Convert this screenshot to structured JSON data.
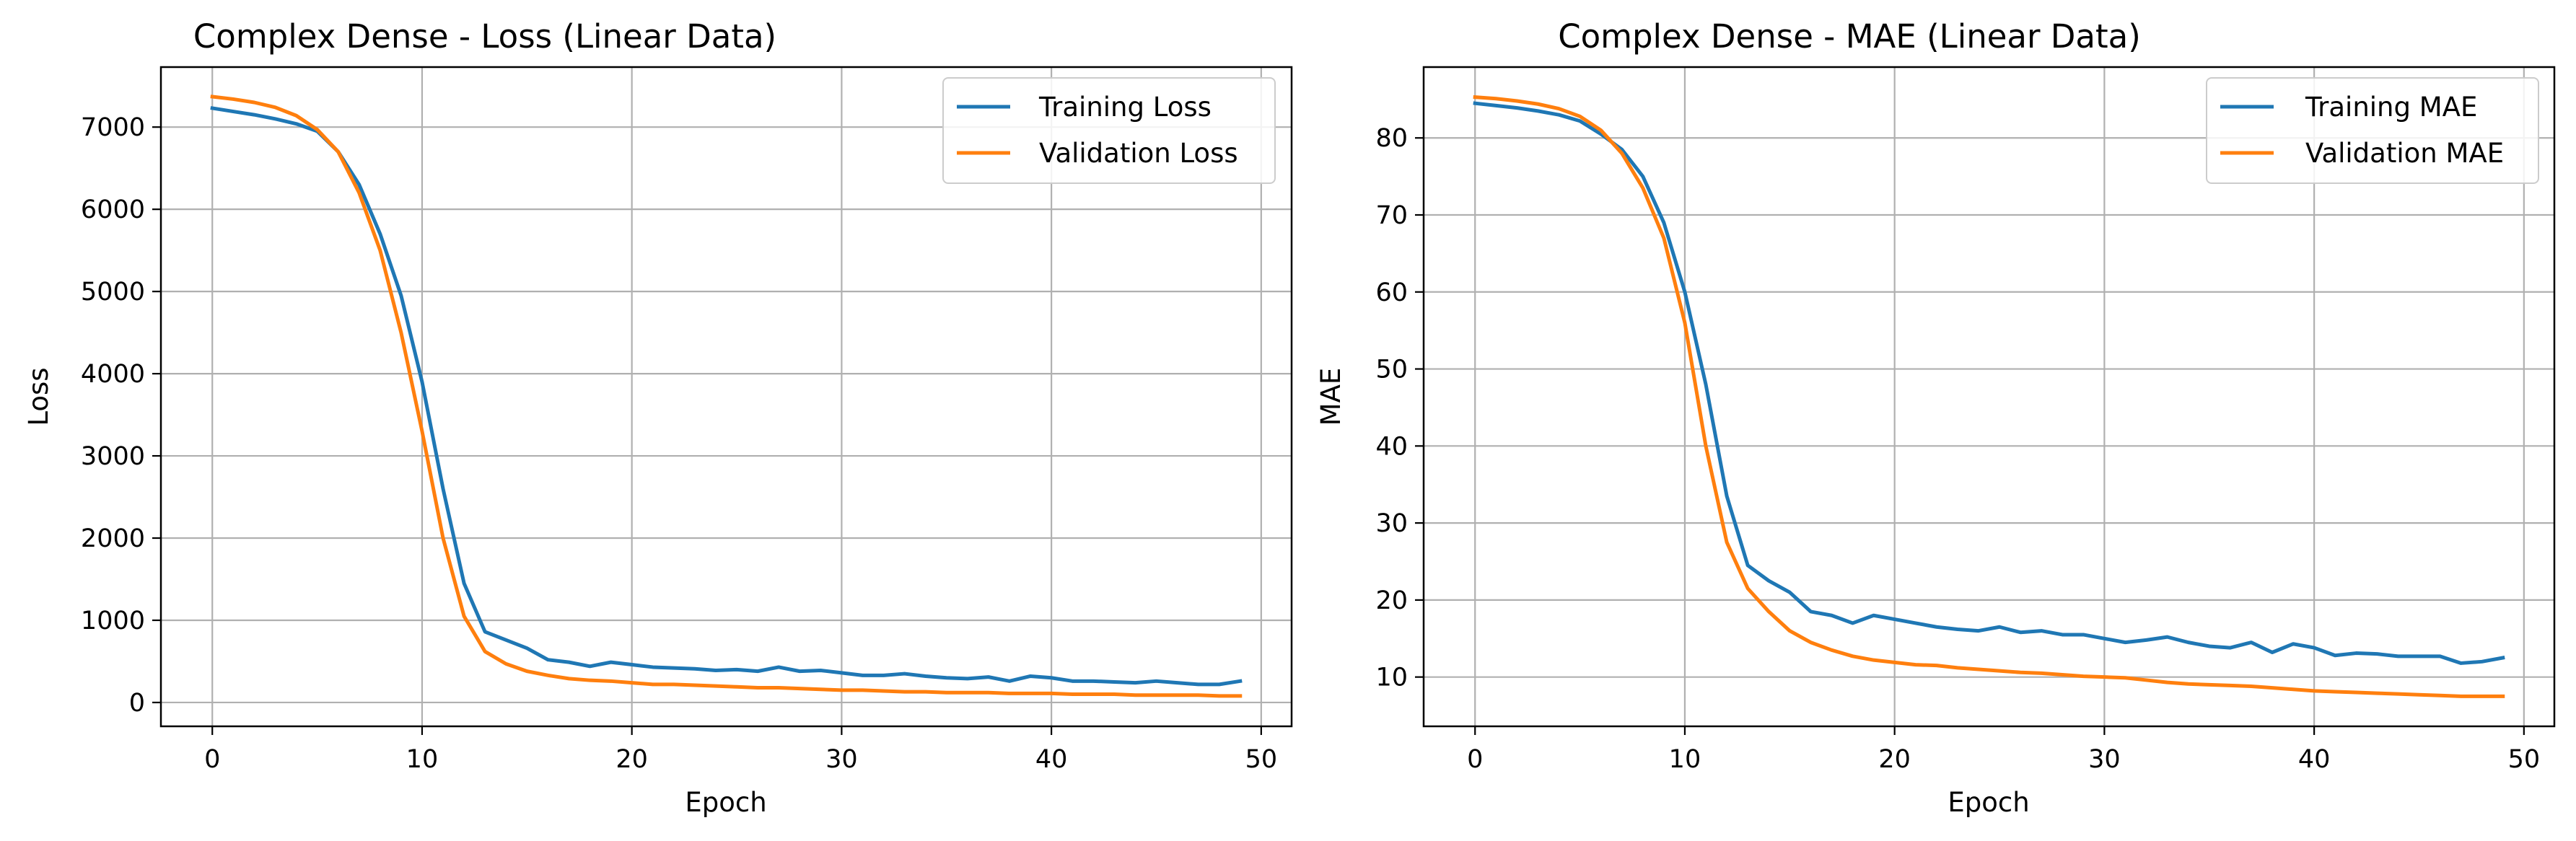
{
  "chart_data": [
    {
      "type": "line",
      "title": "Complex Dense - Loss (Linear Data)",
      "xlabel": "Epoch",
      "ylabel": "Loss",
      "xlim": [
        -2.45,
        51.45
      ],
      "ylim": [
        -290,
        7730
      ],
      "xticks": [
        0,
        10,
        20,
        30,
        40,
        50
      ],
      "yticks": [
        0,
        1000,
        2000,
        3000,
        4000,
        5000,
        6000,
        7000
      ],
      "grid": true,
      "legend_position": "top-right",
      "series": [
        {
          "name": "Training Loss",
          "color": "#1f77b4",
          "values": [
            7230,
            7190,
            7150,
            7100,
            7040,
            6950,
            6700,
            6300,
            5700,
            4950,
            3900,
            2600,
            1450,
            860,
            760,
            660,
            520,
            490,
            440,
            490,
            460,
            430,
            420,
            410,
            390,
            400,
            380,
            430,
            380,
            390,
            360,
            330,
            330,
            350,
            320,
            300,
            290,
            310,
            260,
            320,
            300,
            260,
            260,
            250,
            240,
            260,
            240,
            220,
            220,
            260
          ]
        },
        {
          "name": "Validation Loss",
          "color": "#ff7f0e",
          "values": [
            7370,
            7340,
            7300,
            7240,
            7140,
            6970,
            6700,
            6200,
            5500,
            4500,
            3300,
            2000,
            1050,
            620,
            470,
            380,
            330,
            290,
            270,
            260,
            240,
            220,
            220,
            210,
            200,
            190,
            180,
            180,
            170,
            160,
            150,
            150,
            140,
            130,
            130,
            120,
            120,
            120,
            110,
            110,
            110,
            100,
            100,
            100,
            90,
            90,
            90,
            90,
            80,
            80
          ]
        }
      ]
    },
    {
      "type": "line",
      "title": "Complex Dense - MAE (Linear Data)",
      "xlabel": "Epoch",
      "ylabel": "MAE",
      "xlim": [
        -2.45,
        51.45
      ],
      "ylim": [
        3.6,
        89.2
      ],
      "xticks": [
        0,
        10,
        20,
        30,
        40,
        50
      ],
      "yticks": [
        10,
        20,
        30,
        40,
        50,
        60,
        70,
        80
      ],
      "grid": true,
      "legend_position": "top-right",
      "series": [
        {
          "name": "Training MAE",
          "color": "#1f77b4",
          "values": [
            84.5,
            84.2,
            83.9,
            83.5,
            83.0,
            82.2,
            80.5,
            78.5,
            75.0,
            69.0,
            60.0,
            48.0,
            33.5,
            24.5,
            22.5,
            21.0,
            18.5,
            18.0,
            17.0,
            18.0,
            17.5,
            17.0,
            16.5,
            16.2,
            16.0,
            16.5,
            15.8,
            16.0,
            15.5,
            15.5,
            15.0,
            14.5,
            14.8,
            15.2,
            14.5,
            14.0,
            13.8,
            14.5,
            13.2,
            14.3,
            13.8,
            12.8,
            13.1,
            13.0,
            12.7,
            12.7,
            12.7,
            11.8,
            12.0,
            12.5
          ]
        },
        {
          "name": "Validation MAE",
          "color": "#ff7f0e",
          "values": [
            85.3,
            85.1,
            84.8,
            84.4,
            83.8,
            82.8,
            81.0,
            78.0,
            73.5,
            67.0,
            56.0,
            40.0,
            27.5,
            21.5,
            18.5,
            16.0,
            14.5,
            13.5,
            12.7,
            12.2,
            11.9,
            11.6,
            11.5,
            11.2,
            11.0,
            10.8,
            10.6,
            10.5,
            10.3,
            10.1,
            10.0,
            9.9,
            9.6,
            9.3,
            9.1,
            9.0,
            8.9,
            8.8,
            8.6,
            8.4,
            8.2,
            8.1,
            8.0,
            7.9,
            7.8,
            7.7,
            7.6,
            7.5,
            7.5,
            7.5
          ]
        }
      ]
    }
  ]
}
